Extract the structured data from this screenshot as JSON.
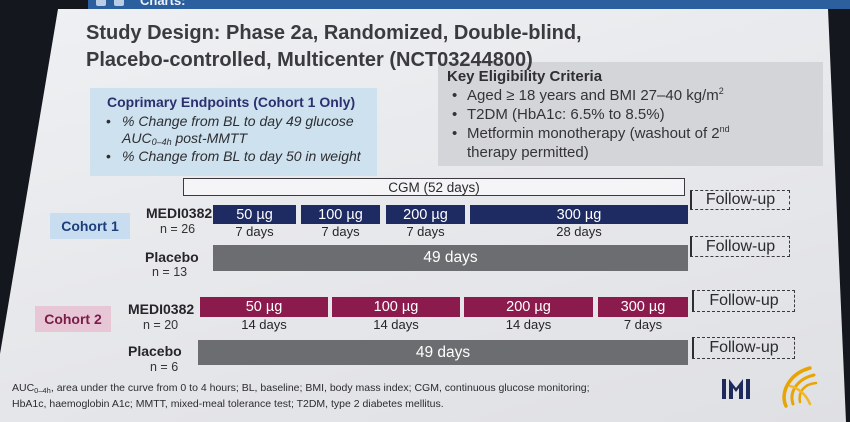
{
  "window": {
    "ribbon_text": "Charts:",
    "ribbon_icons": [
      "app-icon",
      "menu-icon"
    ]
  },
  "title": {
    "line1": "Study Design: Phase 2a, Randomized, Double-blind,",
    "line2": "Placebo-controlled, Multicenter (NCT03244800)"
  },
  "endpoints": {
    "heading": "Coprimary Endpoints (Cohort 1 Only)",
    "items": [
      {
        "text": "% Change from BL to day 49 glucose",
        "auc": "AUC",
        "auc_sub": "0–4h",
        "suffix": " post-MMTT"
      },
      {
        "text": "% Change from BL to day 50 in weight"
      }
    ]
  },
  "eligibility": {
    "heading": "Key Eligibility Criteria",
    "items": [
      {
        "text": "Aged ≥ 18 years and BMI 27–40 kg/m",
        "sup": "2"
      },
      {
        "text": "T2DM (HbA1c: 6.5% to 8.5%)"
      },
      {
        "text": "Metformin monotherapy (washout of 2",
        "sup": "nd",
        "continuation": "therapy permitted)"
      }
    ]
  },
  "cgm": {
    "label": "CGM (52 days)"
  },
  "cohorts": [
    {
      "label": "Cohort 1",
      "active": {
        "arm": "MEDI0382",
        "n": "n = 26",
        "doses": [
          {
            "dose": "50 µg",
            "duration": "7 days"
          },
          {
            "dose": "100 µg",
            "duration": "7 days"
          },
          {
            "dose": "200 µg",
            "duration": "7 days"
          },
          {
            "dose": "300 µg",
            "duration": "28 days"
          }
        ],
        "follow_up": "Follow-up"
      },
      "placebo": {
        "arm": "Placebo",
        "n": "n = 13",
        "duration": "49 days",
        "follow_up": "Follow-up"
      }
    },
    {
      "label": "Cohort 2",
      "active": {
        "arm": "MEDI0382",
        "n": "n = 20",
        "doses": [
          {
            "dose": "50 µg",
            "duration": "14 days"
          },
          {
            "dose": "100 µg",
            "duration": "14 days"
          },
          {
            "dose": "200 µg",
            "duration": "14 days"
          },
          {
            "dose": "300 µg",
            "duration": "7 days"
          }
        ],
        "follow_up": "Follow-up"
      },
      "placebo": {
        "arm": "Placebo",
        "n": "n = 6",
        "duration": "49 days",
        "follow_up": "Follow-up"
      }
    }
  ],
  "footnote": {
    "abbr": "AUC",
    "abbr_sub": "0–4h",
    "line1_rest": ", area under the curve from 0 to 4 hours; BL, baseline; BMI, body mass index; CGM, continuous glucose monitoring;",
    "line2": "HbA1c, haemoglobin A1c; MMTT, mixed-meal tolerance test; T2DM, type 2 diabetes mellitus."
  },
  "logos": [
    "m-logo-icon",
    "swirl-logo-icon"
  ],
  "colors": {
    "cohort1_bar": "#1e2a62",
    "cohort2_bar": "#8b1b4d",
    "placebo_bar": "#6c6d70",
    "endpoints_box": "#cde1ee",
    "eligibility_box": "#d4d5d8",
    "cohort1_label": "#c8def0",
    "cohort2_label": "#e7c7d5",
    "logo_gold": "#e8a400"
  }
}
